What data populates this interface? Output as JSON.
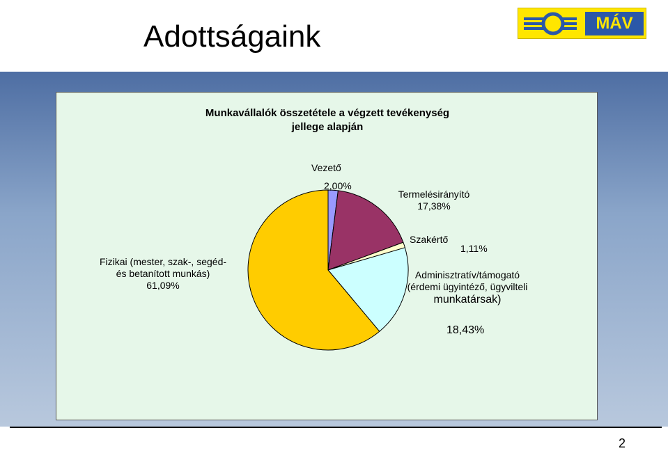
{
  "slide": {
    "title": "Adottságaink",
    "page_number": "2",
    "logo_text": "MÁV"
  },
  "colors": {
    "band": "#6f8cb8",
    "panel": "#e6f7e9",
    "logo_bg": "#ffe600",
    "logo_box": "#2b58a8"
  },
  "chart_data": {
    "type": "pie",
    "title_lines": [
      "Munkavállalók összetétele a végzett tevékenység",
      "jellege alapján"
    ],
    "slices": [
      {
        "category": "Vezető",
        "label_lines": [
          "Vezető"
        ],
        "value_text": "2,00%",
        "value": 2.0,
        "color": "#9999ff"
      },
      {
        "category": "Termelésirányító",
        "label_lines": [
          "Termelésirányító"
        ],
        "value_text": "17,38%",
        "value": 17.38,
        "color": "#993366"
      },
      {
        "category": "Szakértő",
        "label_lines": [
          "Szakértő"
        ],
        "value_text": "1,11%",
        "value": 1.11,
        "color": "#ffffcc"
      },
      {
        "category": "Adminisztratív/támogató",
        "label_lines": [
          "Adminisztratív/támogató",
          "(érdemi ügyintéző, ügyvilteli",
          "munkatársak)"
        ],
        "value_text": "18,43%",
        "value": 18.43,
        "color": "#ccffff"
      },
      {
        "category": "Fizikai",
        "label_lines": [
          "Fizikai (mester, szak-, segéd-",
          "és betanított munkás)"
        ],
        "value_text": "61,09%",
        "value": 61.09,
        "color": "#ffcc00"
      }
    ],
    "legend": "none"
  }
}
